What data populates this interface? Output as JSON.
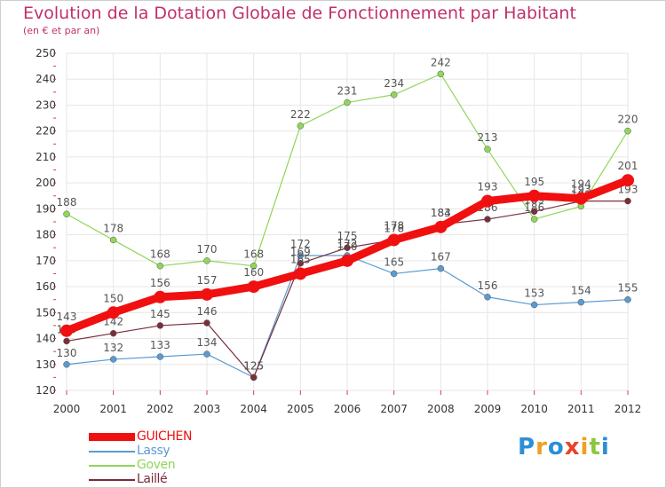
{
  "title": "Evolution de la Dotation Globale de Fonctionnement par Habitant",
  "subtitle": "(en € et par an)",
  "logo": {
    "text": "Proxiti",
    "letters": [
      {
        "ch": "P",
        "color": "#2a8fd6"
      },
      {
        "ch": "r",
        "color": "#f0a020"
      },
      {
        "ch": "o",
        "color": "#2a8fd6"
      },
      {
        "ch": "x",
        "color": "#e8442a"
      },
      {
        "ch": "i",
        "color": "#f0a020"
      },
      {
        "ch": "t",
        "color": "#8cc63f"
      },
      {
        "ch": "i",
        "color": "#2a8fd6"
      }
    ]
  },
  "chart_data": {
    "type": "line",
    "x": [
      2000,
      2001,
      2002,
      2003,
      2004,
      2005,
      2006,
      2007,
      2008,
      2009,
      2010,
      2011,
      2012
    ],
    "ylim": [
      120,
      250
    ],
    "yticks": [
      120,
      130,
      140,
      150,
      160,
      170,
      180,
      190,
      200,
      210,
      220,
      230,
      240,
      250
    ],
    "grid": true,
    "legend": "bottom-left",
    "series": [
      {
        "name": "Goven",
        "color": "#8fd65a",
        "values": [
          188,
          178,
          168,
          170,
          168,
          222,
          231,
          234,
          242,
          213,
          186,
          191,
          220
        ]
      },
      {
        "name": "Lassy",
        "color": "#5b9bd0",
        "values": [
          130,
          132,
          133,
          134,
          125,
          172,
          172,
          165,
          167,
          156,
          153,
          154,
          155
        ]
      },
      {
        "name": "Laillé",
        "color": "#7a2e3a",
        "values": [
          139,
          142,
          145,
          146,
          125,
          169,
          175,
          178,
          184,
          186,
          189,
          193,
          193
        ]
      },
      {
        "name": "GUICHEN",
        "color": "#f01010",
        "values": [
          143,
          150,
          156,
          157,
          160,
          165,
          170,
          178,
          183,
          193,
          195,
          194,
          201
        ]
      }
    ]
  }
}
